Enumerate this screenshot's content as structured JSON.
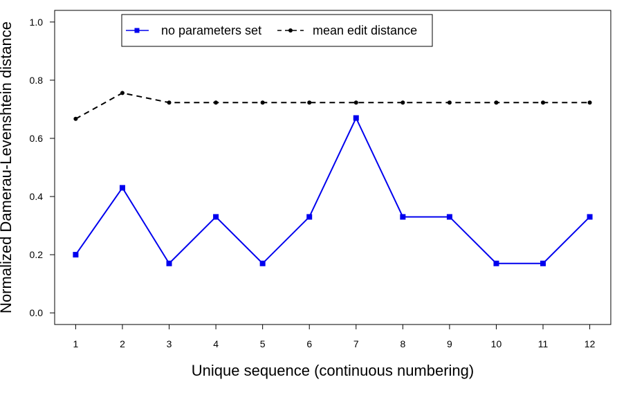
{
  "chart_data": {
    "type": "line",
    "xlabel": "Unique sequence (continuous numbering)",
    "ylabel": "Normalized Damerau-Levenshtein distance",
    "x": [
      1,
      2,
      3,
      4,
      5,
      6,
      7,
      8,
      9,
      10,
      11,
      12
    ],
    "xlim": [
      0.55,
      12.45
    ],
    "ylim": [
      -0.04,
      1.04
    ],
    "y_ticks": [
      0.0,
      0.2,
      0.4,
      0.6,
      0.8,
      1.0
    ],
    "y_tick_labels": [
      "0.0",
      "0.2",
      "0.4",
      "0.6",
      "0.8",
      "1.0"
    ],
    "x_tick_labels": [
      "1",
      "2",
      "3",
      "4",
      "5",
      "6",
      "7",
      "8",
      "9",
      "10",
      "11",
      "12"
    ],
    "grid": false,
    "legend_position": "top-left",
    "series": [
      {
        "name": "no parameters set",
        "color": "#0000ee",
        "line_style": "solid",
        "marker": "square",
        "values": [
          0.2,
          0.43,
          0.17,
          0.33,
          0.17,
          0.33,
          0.67,
          0.33,
          0.33,
          0.17,
          0.17,
          0.33
        ]
      },
      {
        "name": "mean edit distance",
        "color": "#000000",
        "line_style": "dashed",
        "marker": "dot",
        "values": [
          0.667,
          0.756,
          0.723,
          0.723,
          0.723,
          0.723,
          0.723,
          0.723,
          0.723,
          0.723,
          0.723,
          0.723
        ]
      }
    ]
  }
}
